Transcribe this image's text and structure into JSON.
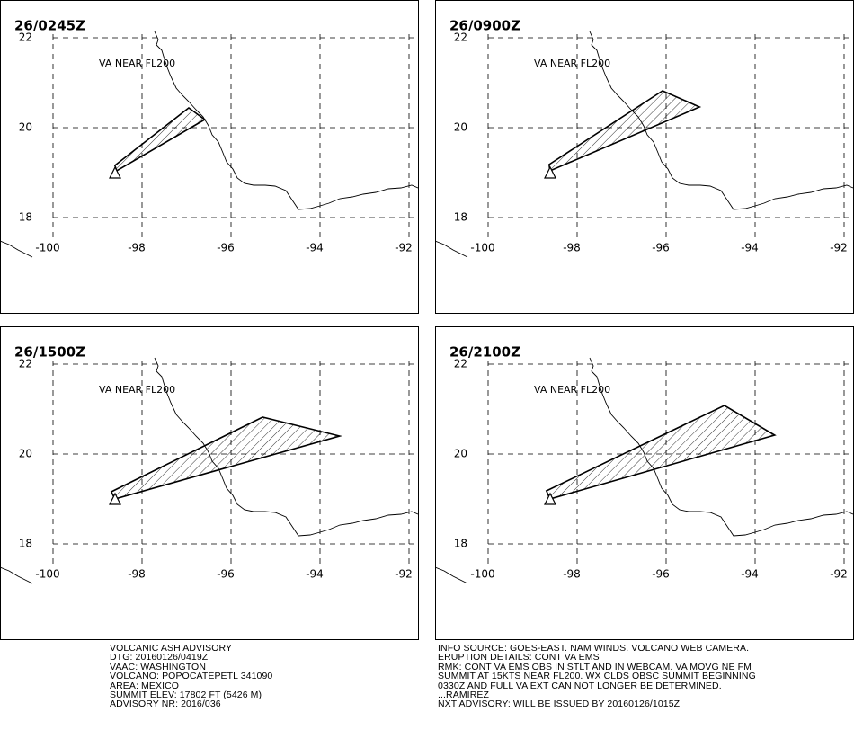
{
  "panels": [
    {
      "time": "26/0245Z",
      "annotation": "VA NEAR FL200",
      "polygon_lon": [
        -98.61,
        -96.95,
        -96.59,
        -98.57
      ],
      "polygon_lat": [
        19.16,
        20.44,
        20.18,
        19.04
      ]
    },
    {
      "time": "26/0900Z",
      "annotation": "VA NEAR FL200",
      "polygon_lon": [
        -98.63,
        -96.08,
        -95.25,
        -98.61
      ],
      "polygon_lat": [
        19.18,
        20.82,
        20.46,
        19.04
      ]
    },
    {
      "time": "26/1500Z",
      "annotation": "VA NEAR FL200",
      "polygon_lon": [
        -98.69,
        -95.29,
        -93.56,
        -98.61
      ],
      "polygon_lat": [
        19.16,
        20.82,
        20.4,
        19.0
      ]
    },
    {
      "time": "26/2100Z",
      "annotation": "VA NEAR FL200",
      "polygon_lon": [
        -98.69,
        -94.69,
        -93.56,
        -98.61
      ],
      "polygon_lat": [
        19.18,
        21.08,
        20.42,
        19.0
      ]
    }
  ],
  "lat_ticks": [
    22,
    20,
    18
  ],
  "lon_ticks": [
    -100,
    -98,
    -96,
    -94,
    -92
  ],
  "advisory_left": [
    "VOLCANIC ASH ADVISORY",
    "DTG: 20160126/0419Z",
    "VAAC: WASHINGTON",
    "VOLCANO: POPOCATEPETL 341090",
    "AREA: MEXICO",
    "SUMMIT ELEV: 17802 FT (5426 M)",
    "ADVISORY NR: 2016/036"
  ],
  "advisory_right": [
    "INFO SOURCE: GOES-EAST. NAM WINDS. VOLCANO WEB CAMERA.",
    "ERUPTION DETAILS: CONT VA EMS",
    "RMK: CONT VA EMS OBS IN STLT AND IN WEBCAM. VA MOVG NE FM",
    "SUMMIT AT 15KTS NEAR FL200. WX CLDS OBSC SUMMIT BEGINNING",
    "0330Z AND FULL VA EXT CAN NOT LONGER BE DETERMINED.",
    "...RAMIREZ",
    "NXT ADVISORY: WILL BE ISSUED BY 20160126/1015Z"
  ]
}
